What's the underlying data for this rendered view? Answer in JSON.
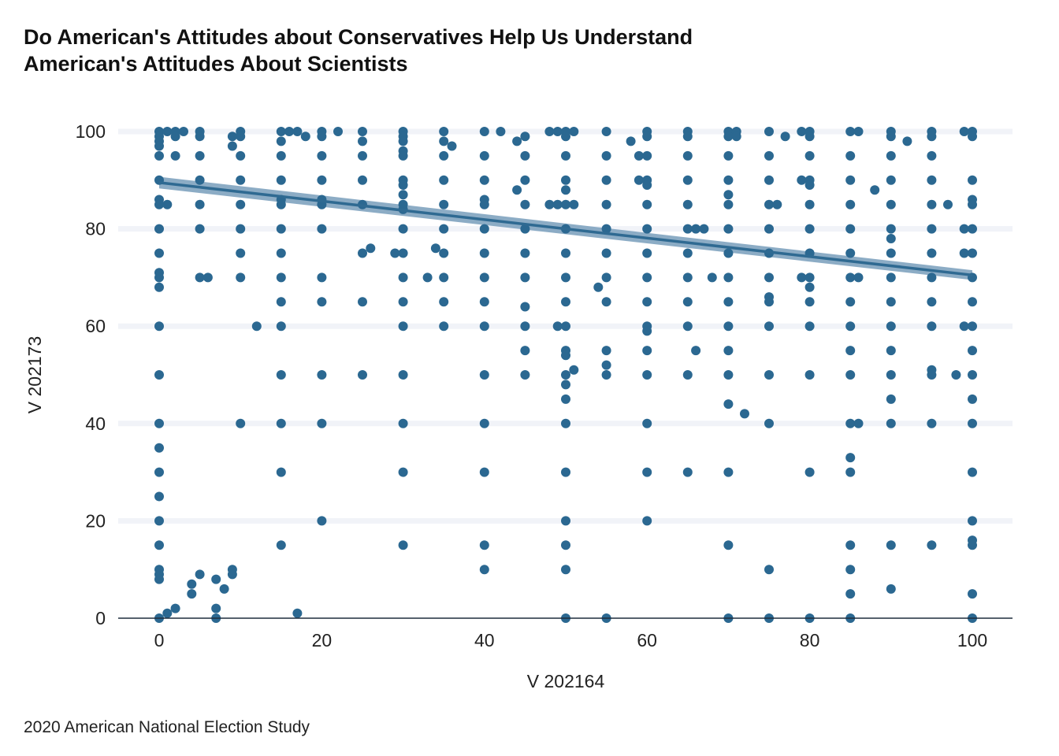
{
  "chart_data": {
    "type": "scatter",
    "title_lines": [
      "Do American's Attitudes about Conservatives Help Us Understand",
      "American's Attitudes About Scientists"
    ],
    "xlabel": "V 202164",
    "ylabel": "V 202173",
    "caption": "2020 American National Election Study",
    "xlim": [
      -5,
      105
    ],
    "ylim": [
      0,
      100
    ],
    "x_ticks": [
      0,
      20,
      40,
      60,
      80,
      100
    ],
    "y_ticks": [
      0,
      20,
      40,
      60,
      80,
      100
    ],
    "grid": "horizontal major lines, light",
    "colors": {
      "point": "#2b6891",
      "trend_line": "#2f6a92",
      "ribbon": "#7fa3bf",
      "grid": "#f1f3f8",
      "axis": "#1f2d3d"
    },
    "trend_line": {
      "method": "linear fit with confidence band",
      "x": [
        0,
        100
      ],
      "y": [
        89.5,
        70.5
      ],
      "band": [
        1.2,
        1.0
      ]
    },
    "points": [
      [
        0,
        100
      ],
      [
        0,
        99
      ],
      [
        0,
        98
      ],
      [
        0,
        97
      ],
      [
        0,
        95
      ],
      [
        0,
        90
      ],
      [
        0,
        86
      ],
      [
        0,
        85
      ],
      [
        0,
        80
      ],
      [
        0,
        75
      ],
      [
        0,
        71
      ],
      [
        0,
        70
      ],
      [
        0,
        68
      ],
      [
        0,
        60
      ],
      [
        0,
        50
      ],
      [
        0,
        40
      ],
      [
        0,
        35
      ],
      [
        0,
        30
      ],
      [
        0,
        25
      ],
      [
        0,
        20
      ],
      [
        0,
        15
      ],
      [
        0,
        10
      ],
      [
        0,
        9
      ],
      [
        0,
        8
      ],
      [
        0,
        0
      ],
      [
        1,
        100
      ],
      [
        1,
        85
      ],
      [
        1,
        1
      ],
      [
        2,
        100
      ],
      [
        2,
        99
      ],
      [
        2,
        95
      ],
      [
        2,
        2
      ],
      [
        3,
        100
      ],
      [
        4,
        7
      ],
      [
        4,
        5
      ],
      [
        5,
        100
      ],
      [
        5,
        99
      ],
      [
        5,
        95
      ],
      [
        5,
        90
      ],
      [
        5,
        85
      ],
      [
        5,
        80
      ],
      [
        5,
        70
      ],
      [
        5,
        9
      ],
      [
        6,
        70
      ],
      [
        7,
        8
      ],
      [
        7,
        2
      ],
      [
        7,
        0
      ],
      [
        8,
        6
      ],
      [
        9,
        99
      ],
      [
        9,
        97
      ],
      [
        9,
        10
      ],
      [
        9,
        9
      ],
      [
        10,
        100
      ],
      [
        10,
        99
      ],
      [
        10,
        95
      ],
      [
        10,
        90
      ],
      [
        10,
        85
      ],
      [
        10,
        80
      ],
      [
        10,
        75
      ],
      [
        10,
        70
      ],
      [
        10,
        40
      ],
      [
        12,
        60
      ],
      [
        15,
        100
      ],
      [
        15,
        98
      ],
      [
        15,
        95
      ],
      [
        15,
        90
      ],
      [
        15,
        86
      ],
      [
        15,
        85
      ],
      [
        15,
        80
      ],
      [
        15,
        75
      ],
      [
        15,
        70
      ],
      [
        15,
        65
      ],
      [
        15,
        60
      ],
      [
        15,
        50
      ],
      [
        15,
        40
      ],
      [
        15,
        30
      ],
      [
        15,
        15
      ],
      [
        16,
        100
      ],
      [
        17,
        100
      ],
      [
        17,
        1
      ],
      [
        18,
        99
      ],
      [
        20,
        100
      ],
      [
        20,
        99
      ],
      [
        20,
        95
      ],
      [
        20,
        90
      ],
      [
        20,
        86
      ],
      [
        20,
        85
      ],
      [
        20,
        80
      ],
      [
        20,
        70
      ],
      [
        20,
        65
      ],
      [
        20,
        50
      ],
      [
        20,
        40
      ],
      [
        20,
        20
      ],
      [
        22,
        100
      ],
      [
        25,
        100
      ],
      [
        25,
        98
      ],
      [
        25,
        95
      ],
      [
        25,
        90
      ],
      [
        25,
        85
      ],
      [
        25,
        75
      ],
      [
        25,
        65
      ],
      [
        25,
        50
      ],
      [
        26,
        76
      ],
      [
        29,
        75
      ],
      [
        30,
        100
      ],
      [
        30,
        99
      ],
      [
        30,
        98
      ],
      [
        30,
        96
      ],
      [
        30,
        95
      ],
      [
        30,
        90
      ],
      [
        30,
        89
      ],
      [
        30,
        87
      ],
      [
        30,
        85
      ],
      [
        30,
        84
      ],
      [
        30,
        80
      ],
      [
        30,
        75
      ],
      [
        30,
        70
      ],
      [
        30,
        65
      ],
      [
        30,
        60
      ],
      [
        30,
        50
      ],
      [
        30,
        40
      ],
      [
        30,
        30
      ],
      [
        30,
        15
      ],
      [
        33,
        70
      ],
      [
        34,
        76
      ],
      [
        35,
        100
      ],
      [
        35,
        98
      ],
      [
        35,
        95
      ],
      [
        35,
        90
      ],
      [
        35,
        85
      ],
      [
        35,
        80
      ],
      [
        35,
        75
      ],
      [
        35,
        70
      ],
      [
        35,
        65
      ],
      [
        35,
        60
      ],
      [
        36,
        97
      ],
      [
        40,
        100
      ],
      [
        40,
        95
      ],
      [
        40,
        90
      ],
      [
        40,
        86
      ],
      [
        40,
        85
      ],
      [
        40,
        80
      ],
      [
        40,
        75
      ],
      [
        40,
        70
      ],
      [
        40,
        65
      ],
      [
        40,
        60
      ],
      [
        40,
        50
      ],
      [
        40,
        40
      ],
      [
        40,
        30
      ],
      [
        40,
        15
      ],
      [
        40,
        10
      ],
      [
        42,
        100
      ],
      [
        44,
        98
      ],
      [
        44,
        88
      ],
      [
        45,
        99
      ],
      [
        45,
        95
      ],
      [
        45,
        90
      ],
      [
        45,
        85
      ],
      [
        45,
        80
      ],
      [
        45,
        75
      ],
      [
        45,
        70
      ],
      [
        45,
        64
      ],
      [
        45,
        60
      ],
      [
        45,
        55
      ],
      [
        45,
        50
      ],
      [
        48,
        100
      ],
      [
        48,
        85
      ],
      [
        49,
        100
      ],
      [
        49,
        85
      ],
      [
        49,
        60
      ],
      [
        50,
        100
      ],
      [
        50,
        99
      ],
      [
        50,
        95
      ],
      [
        50,
        90
      ],
      [
        50,
        88
      ],
      [
        50,
        85
      ],
      [
        50,
        80
      ],
      [
        50,
        75
      ],
      [
        50,
        70
      ],
      [
        50,
        65
      ],
      [
        50,
        60
      ],
      [
        50,
        55
      ],
      [
        50,
        54
      ],
      [
        50,
        50
      ],
      [
        50,
        48
      ],
      [
        50,
        45
      ],
      [
        50,
        40
      ],
      [
        50,
        30
      ],
      [
        50,
        20
      ],
      [
        50,
        15
      ],
      [
        50,
        10
      ],
      [
        50,
        0
      ],
      [
        51,
        100
      ],
      [
        51,
        85
      ],
      [
        51,
        51
      ],
      [
        54,
        68
      ],
      [
        55,
        100
      ],
      [
        55,
        95
      ],
      [
        55,
        90
      ],
      [
        55,
        85
      ],
      [
        55,
        80
      ],
      [
        55,
        75
      ],
      [
        55,
        70
      ],
      [
        55,
        65
      ],
      [
        55,
        55
      ],
      [
        55,
        52
      ],
      [
        55,
        50
      ],
      [
        55,
        0
      ],
      [
        58,
        98
      ],
      [
        59,
        95
      ],
      [
        59,
        90
      ],
      [
        60,
        100
      ],
      [
        60,
        99
      ],
      [
        60,
        95
      ],
      [
        60,
        90
      ],
      [
        60,
        89
      ],
      [
        60,
        85
      ],
      [
        60,
        80
      ],
      [
        60,
        75
      ],
      [
        60,
        70
      ],
      [
        60,
        65
      ],
      [
        60,
        60
      ],
      [
        60,
        59
      ],
      [
        60,
        55
      ],
      [
        60,
        50
      ],
      [
        60,
        40
      ],
      [
        60,
        30
      ],
      [
        60,
        20
      ],
      [
        65,
        100
      ],
      [
        65,
        99
      ],
      [
        65,
        95
      ],
      [
        65,
        90
      ],
      [
        65,
        85
      ],
      [
        65,
        80
      ],
      [
        65,
        75
      ],
      [
        65,
        70
      ],
      [
        65,
        65
      ],
      [
        65,
        60
      ],
      [
        65,
        50
      ],
      [
        65,
        30
      ],
      [
        66,
        80
      ],
      [
        66,
        55
      ],
      [
        67,
        80
      ],
      [
        68,
        70
      ],
      [
        70,
        100
      ],
      [
        70,
        99
      ],
      [
        70,
        95
      ],
      [
        70,
        90
      ],
      [
        70,
        87
      ],
      [
        70,
        85
      ],
      [
        70,
        80
      ],
      [
        70,
        75
      ],
      [
        70,
        70
      ],
      [
        70,
        65
      ],
      [
        70,
        60
      ],
      [
        70,
        55
      ],
      [
        70,
        50
      ],
      [
        70,
        44
      ],
      [
        70,
        30
      ],
      [
        70,
        15
      ],
      [
        70,
        0
      ],
      [
        71,
        100
      ],
      [
        71,
        99
      ],
      [
        72,
        42
      ],
      [
        75,
        100
      ],
      [
        75,
        95
      ],
      [
        75,
        90
      ],
      [
        75,
        85
      ],
      [
        75,
        80
      ],
      [
        75,
        75
      ],
      [
        75,
        70
      ],
      [
        75,
        66
      ],
      [
        75,
        65
      ],
      [
        75,
        60
      ],
      [
        75,
        50
      ],
      [
        75,
        40
      ],
      [
        75,
        10
      ],
      [
        75,
        0
      ],
      [
        76,
        85
      ],
      [
        77,
        99
      ],
      [
        79,
        100
      ],
      [
        79,
        90
      ],
      [
        79,
        70
      ],
      [
        80,
        100
      ],
      [
        80,
        99
      ],
      [
        80,
        95
      ],
      [
        80,
        90
      ],
      [
        80,
        89
      ],
      [
        80,
        85
      ],
      [
        80,
        80
      ],
      [
        80,
        75
      ],
      [
        80,
        70
      ],
      [
        80,
        68
      ],
      [
        80,
        65
      ],
      [
        80,
        60
      ],
      [
        80,
        50
      ],
      [
        80,
        30
      ],
      [
        80,
        0
      ],
      [
        85,
        100
      ],
      [
        85,
        95
      ],
      [
        85,
        90
      ],
      [
        85,
        85
      ],
      [
        85,
        80
      ],
      [
        85,
        75
      ],
      [
        85,
        70
      ],
      [
        85,
        65
      ],
      [
        85,
        60
      ],
      [
        85,
        55
      ],
      [
        85,
        50
      ],
      [
        85,
        40
      ],
      [
        85,
        33
      ],
      [
        85,
        30
      ],
      [
        85,
        15
      ],
      [
        85,
        10
      ],
      [
        85,
        5
      ],
      [
        85,
        0
      ],
      [
        86,
        100
      ],
      [
        86,
        70
      ],
      [
        86,
        40
      ],
      [
        88,
        88
      ],
      [
        90,
        100
      ],
      [
        90,
        99
      ],
      [
        90,
        95
      ],
      [
        90,
        90
      ],
      [
        90,
        85
      ],
      [
        90,
        80
      ],
      [
        90,
        78
      ],
      [
        90,
        75
      ],
      [
        90,
        70
      ],
      [
        90,
        65
      ],
      [
        90,
        60
      ],
      [
        90,
        55
      ],
      [
        90,
        50
      ],
      [
        90,
        45
      ],
      [
        90,
        40
      ],
      [
        90,
        15
      ],
      [
        90,
        6
      ],
      [
        92,
        98
      ],
      [
        95,
        100
      ],
      [
        95,
        99
      ],
      [
        95,
        95
      ],
      [
        95,
        90
      ],
      [
        95,
        85
      ],
      [
        95,
        80
      ],
      [
        95,
        75
      ],
      [
        95,
        70
      ],
      [
        95,
        65
      ],
      [
        95,
        60
      ],
      [
        95,
        51
      ],
      [
        95,
        50
      ],
      [
        95,
        40
      ],
      [
        95,
        15
      ],
      [
        97,
        85
      ],
      [
        98,
        50
      ],
      [
        99,
        100
      ],
      [
        99,
        80
      ],
      [
        99,
        75
      ],
      [
        99,
        60
      ],
      [
        100,
        100
      ],
      [
        100,
        99
      ],
      [
        100,
        90
      ],
      [
        100,
        86
      ],
      [
        100,
        85
      ],
      [
        100,
        80
      ],
      [
        100,
        75
      ],
      [
        100,
        70
      ],
      [
        100,
        65
      ],
      [
        100,
        60
      ],
      [
        100,
        55
      ],
      [
        100,
        50
      ],
      [
        100,
        45
      ],
      [
        100,
        40
      ],
      [
        100,
        30
      ],
      [
        100,
        20
      ],
      [
        100,
        16
      ],
      [
        100,
        15
      ],
      [
        100,
        5
      ],
      [
        100,
        0
      ]
    ]
  }
}
